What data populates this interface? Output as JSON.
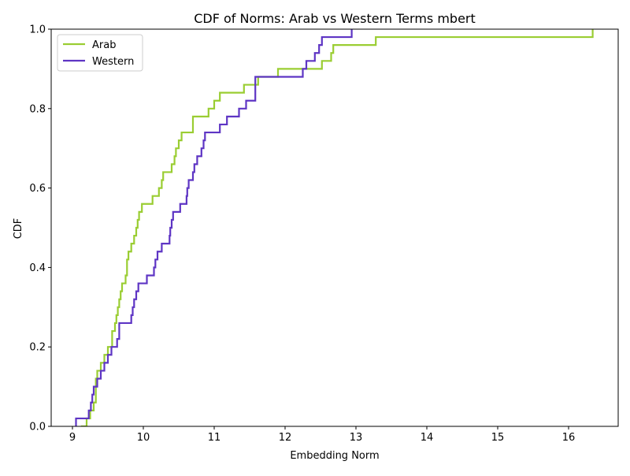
{
  "chart_data": {
    "type": "line",
    "title": "CDF of Norms: Arab vs Western Terms mbert",
    "xlabel": "Embedding Norm",
    "ylabel": "CDF",
    "xlim": [
      8.7,
      16.7
    ],
    "ylim": [
      0.0,
      1.0
    ],
    "xticks": [
      9,
      10,
      11,
      12,
      13,
      14,
      15,
      16
    ],
    "xtick_labels": [
      "9",
      "10",
      "11",
      "12",
      "13",
      "14",
      "15",
      "16"
    ],
    "yticks": [
      0.0,
      0.2,
      0.4,
      0.6,
      0.8,
      1.0
    ],
    "ytick_labels": [
      "0.0",
      "0.2",
      "0.4",
      "0.6",
      "0.8",
      "1.0"
    ],
    "grid": false,
    "legend_position": "upper-left",
    "series": [
      {
        "name": "Arab",
        "color": "#9acd32",
        "step": "post",
        "x": [
          9.12,
          9.2,
          9.25,
          9.3,
          9.33,
          9.35,
          9.4,
          9.45,
          9.5,
          9.56,
          9.6,
          9.62,
          9.64,
          9.66,
          9.68,
          9.7,
          9.75,
          9.77,
          9.79,
          9.83,
          9.87,
          9.9,
          9.92,
          9.94,
          9.98,
          10.13,
          10.22,
          10.26,
          10.28,
          10.3,
          10.4,
          10.44,
          10.46,
          10.48,
          10.5,
          10.54,
          10.7,
          10.92,
          11.0,
          11.08,
          11.42,
          11.62,
          11.9,
          12.52,
          12.65,
          12.68,
          13.28,
          16.34
        ],
        "y": [
          0.0,
          0.02,
          0.04,
          0.06,
          0.12,
          0.14,
          0.16,
          0.18,
          0.2,
          0.24,
          0.26,
          0.28,
          0.3,
          0.32,
          0.34,
          0.36,
          0.38,
          0.42,
          0.44,
          0.46,
          0.48,
          0.5,
          0.52,
          0.54,
          0.56,
          0.58,
          0.6,
          0.62,
          0.64,
          0.64,
          0.66,
          0.68,
          0.7,
          0.7,
          0.72,
          0.74,
          0.78,
          0.8,
          0.82,
          0.84,
          0.86,
          0.88,
          0.9,
          0.92,
          0.94,
          0.96,
          0.98,
          1.0
        ]
      },
      {
        "name": "Western",
        "color": "#5e35c4",
        "step": "post",
        "x": [
          9.05,
          9.23,
          9.26,
          9.28,
          9.3,
          9.35,
          9.4,
          9.45,
          9.5,
          9.55,
          9.63,
          9.66,
          9.7,
          9.83,
          9.85,
          9.87,
          9.9,
          9.93,
          10.05,
          10.15,
          10.17,
          10.2,
          10.26,
          10.37,
          10.38,
          10.4,
          10.42,
          10.52,
          10.61,
          10.62,
          10.64,
          10.7,
          10.72,
          10.76,
          10.82,
          10.85,
          10.87,
          10.9,
          11.08,
          11.18,
          11.35,
          11.45,
          11.58,
          12.25,
          12.3,
          12.42,
          12.48,
          12.5,
          12.52,
          12.94
        ],
        "y": [
          0.02,
          0.04,
          0.06,
          0.08,
          0.1,
          0.12,
          0.14,
          0.16,
          0.18,
          0.2,
          0.22,
          0.26,
          0.26,
          0.28,
          0.3,
          0.32,
          0.34,
          0.36,
          0.38,
          0.4,
          0.42,
          0.44,
          0.46,
          0.48,
          0.5,
          0.52,
          0.54,
          0.56,
          0.58,
          0.6,
          0.62,
          0.64,
          0.66,
          0.68,
          0.7,
          0.72,
          0.74,
          0.74,
          0.76,
          0.78,
          0.8,
          0.82,
          0.88,
          0.9,
          0.92,
          0.94,
          0.96,
          0.96,
          0.98,
          1.0
        ]
      }
    ]
  }
}
